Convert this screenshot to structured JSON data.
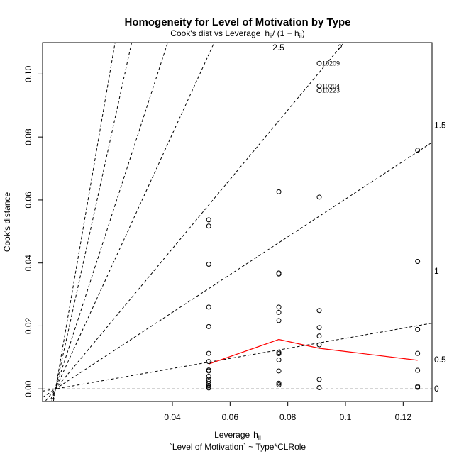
{
  "chart_data": {
    "type": "scatter",
    "title": "Homogeneity for Level of Motivation by Type",
    "subtitle": {
      "text": "Cook's dist vs Leverage",
      "formula_lead": "h",
      "formula_sub": "ii",
      "formula_mid": "/ (1 − h",
      "formula_sub2": "ii",
      "formula_end": ")"
    },
    "xlabel": {
      "text": "Leverage",
      "symbol": "h",
      "sub": "ii"
    },
    "xlabel2": "`Level of Motivation` ~ Type*CLRole",
    "ylabel": "Cook's distance",
    "xlim": [
      -0.005,
      0.13
    ],
    "ylim": [
      -0.004,
      0.11
    ],
    "xticks": [
      0.04,
      0.06,
      0.08,
      0.1,
      0.12
    ],
    "xtick_labels": [
      "0.04",
      "0.06",
      "0.08",
      "0.1",
      "0.12"
    ],
    "yticks": [
      0.0,
      0.02,
      0.04,
      0.06,
      0.08,
      0.1
    ],
    "ytick_labels": [
      "0.00",
      "0.02",
      "0.04",
      "0.06",
      "0.08",
      "0.10"
    ],
    "grid": false,
    "points": [
      {
        "x": 0.0526,
        "y": 0.0537
      },
      {
        "x": 0.0526,
        "y": 0.0517
      },
      {
        "x": 0.0526,
        "y": 0.0396
      },
      {
        "x": 0.0526,
        "y": 0.026
      },
      {
        "x": 0.0526,
        "y": 0.0198
      },
      {
        "x": 0.0526,
        "y": 0.0113
      },
      {
        "x": 0.0526,
        "y": 0.0087
      },
      {
        "x": 0.0526,
        "y": 0.006
      },
      {
        "x": 0.0526,
        "y": 0.0057
      },
      {
        "x": 0.0526,
        "y": 0.004
      },
      {
        "x": 0.0526,
        "y": 0.003
      },
      {
        "x": 0.0526,
        "y": 0.0024
      },
      {
        "x": 0.0526,
        "y": 0.0017
      },
      {
        "x": 0.0526,
        "y": 0.001
      },
      {
        "x": 0.0526,
        "y": 0.0006
      },
      {
        "x": 0.0526,
        "y": 0.0003
      },
      {
        "x": 0.0769,
        "y": 0.0626
      },
      {
        "x": 0.0769,
        "y": 0.0368
      },
      {
        "x": 0.0769,
        "y": 0.0365
      },
      {
        "x": 0.0769,
        "y": 0.026
      },
      {
        "x": 0.0769,
        "y": 0.0243
      },
      {
        "x": 0.0769,
        "y": 0.0217
      },
      {
        "x": 0.0769,
        "y": 0.0116
      },
      {
        "x": 0.0769,
        "y": 0.0112
      },
      {
        "x": 0.0769,
        "y": 0.0092
      },
      {
        "x": 0.0769,
        "y": 0.0057
      },
      {
        "x": 0.0769,
        "y": 0.0018
      },
      {
        "x": 0.0769,
        "y": 0.0013
      },
      {
        "x": 0.0909,
        "y": 0.1034
      },
      {
        "x": 0.0909,
        "y": 0.0962
      },
      {
        "x": 0.0909,
        "y": 0.0948
      },
      {
        "x": 0.0909,
        "y": 0.0609
      },
      {
        "x": 0.0909,
        "y": 0.0249
      },
      {
        "x": 0.0909,
        "y": 0.0195
      },
      {
        "x": 0.0909,
        "y": 0.0168
      },
      {
        "x": 0.0909,
        "y": 0.014
      },
      {
        "x": 0.0909,
        "y": 0.003
      },
      {
        "x": 0.0909,
        "y": 0.0004
      },
      {
        "x": 0.125,
        "y": 0.0758
      },
      {
        "x": 0.125,
        "y": 0.0405
      },
      {
        "x": 0.125,
        "y": 0.0189
      },
      {
        "x": 0.125,
        "y": 0.0113
      },
      {
        "x": 0.125,
        "y": 0.0059
      },
      {
        "x": 0.125,
        "y": 0.0008
      },
      {
        "x": 0.125,
        "y": 0.0005
      }
    ],
    "point_labels": [
      {
        "x": 0.0909,
        "y": 0.1034,
        "label": "10209"
      },
      {
        "x": 0.0909,
        "y": 0.0962,
        "label": "10204"
      },
      {
        "x": 0.0909,
        "y": 0.0948,
        "label": "10223"
      }
    ],
    "smooth_line": {
      "color": "#ff0000",
      "x": [
        0.0526,
        0.0769,
        0.0909,
        0.125
      ],
      "y": [
        0.0079,
        0.0157,
        0.0129,
        0.0091
      ]
    },
    "reference_line_y": 0,
    "contours": [
      {
        "ratio": 0.16,
        "label": "0"
      },
      {
        "ratio": 0.6,
        "label": "0.5"
      },
      {
        "ratio": 1.1,
        "label": "1"
      },
      {
        "ratio": 2.0,
        "label": "1.5"
      },
      {
        "ratio": 2.83,
        "label": "2"
      },
      {
        "ratio": 4.17,
        "label": "2.5"
      },
      {
        "ratio": 5.33,
        "label": ""
      }
    ],
    "contour_x_origin": -0.0005,
    "right_axis_labels": [
      {
        "label": "0",
        "y": 0.0
      },
      {
        "label": "0.5",
        "y": 0.0093
      },
      {
        "label": "1",
        "y": 0.0374
      },
      {
        "label": "1.5",
        "y": 0.0838
      }
    ],
    "top_contour_labels": [
      {
        "label": "2.5",
        "x": 0.0747
      },
      {
        "label": "2",
        "x": 0.0973
      }
    ]
  }
}
